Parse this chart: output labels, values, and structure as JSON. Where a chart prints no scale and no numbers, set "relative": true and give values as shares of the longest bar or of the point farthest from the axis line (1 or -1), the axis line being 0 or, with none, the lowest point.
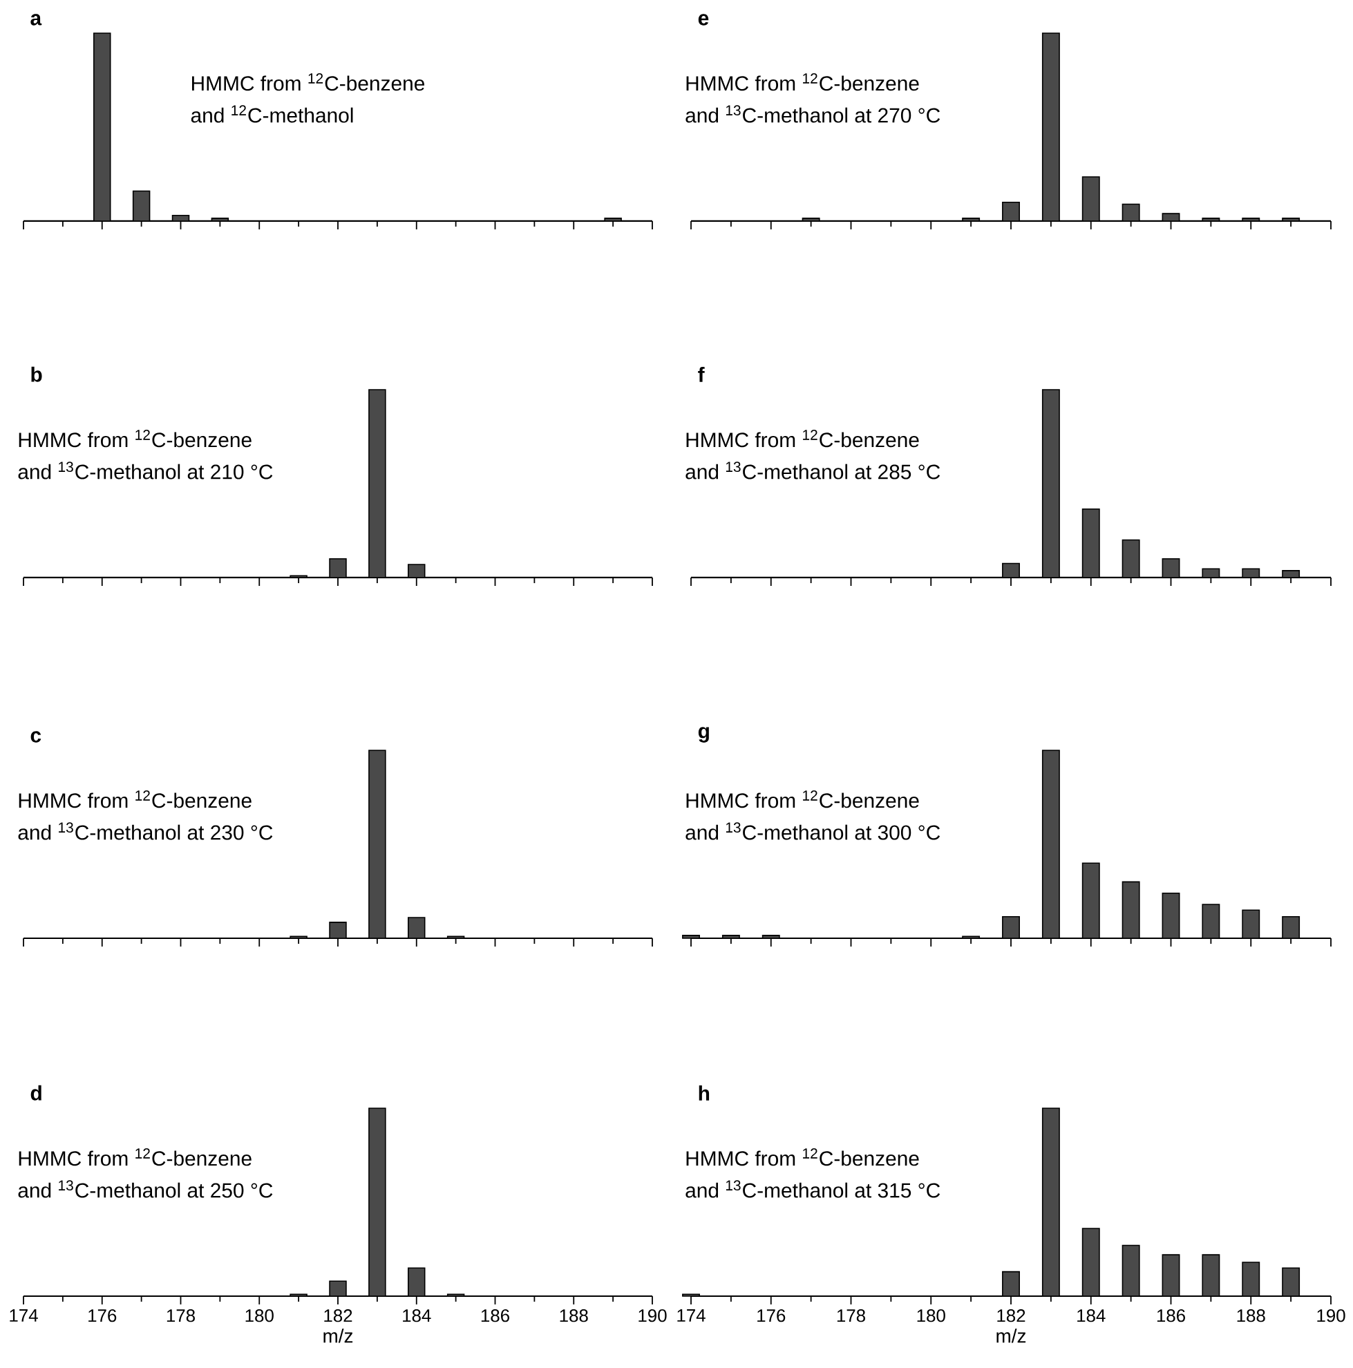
{
  "chart_data": [
    {
      "type": "bar",
      "title": "a",
      "relative": true,
      "color": "#4a4a4a",
      "xlim": [
        174,
        190
      ],
      "xticks": [
        174,
        176,
        178,
        180,
        182,
        184,
        186,
        188,
        190
      ],
      "tick_labels": false,
      "x": [
        176,
        177,
        178,
        179,
        189
      ],
      "values": [
        1,
        0.16,
        0.03,
        0.015,
        0.015
      ],
      "annotations": [
        "HMMC from $^{12}$C-benzene",
        "and $^{12}$C-methanol"
      ]
    },
    {
      "type": "bar",
      "title": "b",
      "relative": true,
      "color": "#4a4a4a",
      "xlim": [
        174,
        190
      ],
      "xticks": [
        174,
        176,
        178,
        180,
        182,
        184,
        186,
        188,
        190
      ],
      "tick_labels": false,
      "x": [
        181,
        182,
        183,
        184
      ],
      "values": [
        0.01,
        0.1,
        1,
        0.07
      ],
      "annotations": [
        "HMMC from $^{12}$C-benzene",
        "and $^{13}$C-methanol at 210 °C"
      ]
    },
    {
      "type": "bar",
      "title": "c",
      "relative": true,
      "color": "#4a4a4a",
      "xlim": [
        174,
        190
      ],
      "xticks": [
        174,
        176,
        178,
        180,
        182,
        184,
        186,
        188,
        190
      ],
      "tick_labels": false,
      "x": [
        181,
        182,
        183,
        184,
        185
      ],
      "values": [
        0.01,
        0.085,
        1,
        0.11,
        0.01
      ],
      "annotations": [
        "HMMC from $^{12}$C-benzene",
        "and $^{13}$C-methanol at 230 °C"
      ]
    },
    {
      "type": "bar",
      "title": "d",
      "relative": true,
      "color": "#4a4a4a",
      "xlim": [
        174,
        190
      ],
      "xticks": [
        174,
        176,
        178,
        180,
        182,
        184,
        186,
        188,
        190
      ],
      "tick_labels": "x",
      "xlabel": "m/z",
      "x": [
        181,
        182,
        183,
        184,
        185
      ],
      "values": [
        0.01,
        0.08,
        1,
        0.15,
        0.01
      ],
      "annotations": [
        "HMMC from $^{12}$C-benzene",
        "and $^{13}$C-methanol at 250 °C"
      ]
    },
    {
      "type": "bar",
      "title": "e",
      "relative": true,
      "color": "#4a4a4a",
      "xlim": [
        174,
        190
      ],
      "xticks": [
        174,
        176,
        178,
        180,
        182,
        184,
        186,
        188,
        190
      ],
      "tick_labels": false,
      "x": [
        177,
        181,
        182,
        183,
        184,
        185,
        186,
        187,
        188,
        189
      ],
      "values": [
        0.015,
        0.015,
        0.1,
        1,
        0.235,
        0.09,
        0.04,
        0.015,
        0.015,
        0.015
      ],
      "annotations": [
        "HMMC from $^{12}$C-benzene",
        "and $^{13}$C-methanol at 270 °C"
      ]
    },
    {
      "type": "bar",
      "title": "f",
      "relative": true,
      "color": "#4a4a4a",
      "xlim": [
        174,
        190
      ],
      "xticks": [
        174,
        176,
        178,
        180,
        182,
        184,
        186,
        188,
        190
      ],
      "tick_labels": false,
      "x": [
        182,
        183,
        184,
        185,
        186,
        187,
        188,
        189
      ],
      "values": [
        0.075,
        1,
        0.365,
        0.2,
        0.1,
        0.047,
        0.047,
        0.037
      ],
      "annotations": [
        "HMMC from $^{12}$C-benzene",
        "and $^{13}$C-methanol at 285 °C"
      ]
    },
    {
      "type": "bar",
      "title": "g",
      "relative": true,
      "color": "#4a4a4a",
      "xlim": [
        174,
        190
      ],
      "xticks": [
        174,
        176,
        178,
        180,
        182,
        184,
        186,
        188,
        190
      ],
      "tick_labels": false,
      "x": [
        174,
        175,
        176,
        181,
        182,
        183,
        184,
        185,
        186,
        187,
        188,
        189
      ],
      "values": [
        0.015,
        0.015,
        0.015,
        0.01,
        0.115,
        1,
        0.4,
        0.3,
        0.24,
        0.18,
        0.15,
        0.115
      ],
      "annotations": [
        "HMMC from $^{12}$C-benzene",
        "and $^{13}$C-methanol at 300 °C"
      ]
    },
    {
      "type": "bar",
      "title": "h",
      "relative": true,
      "color": "#4a4a4a",
      "xlim": [
        174,
        190
      ],
      "xticks": [
        174,
        176,
        178,
        180,
        182,
        184,
        186,
        188,
        190
      ],
      "tick_labels": "x",
      "xlabel": "m/z",
      "x": [
        174,
        182,
        183,
        184,
        185,
        186,
        187,
        188,
        189
      ],
      "values": [
        0.01,
        0.13,
        1,
        0.36,
        0.27,
        0.22,
        0.22,
        0.18,
        0.15
      ],
      "annotations": [
        "HMMC from $^{12}$C-benzene",
        "and $^{13}$C-methanol at 315 °C"
      ]
    }
  ]
}
